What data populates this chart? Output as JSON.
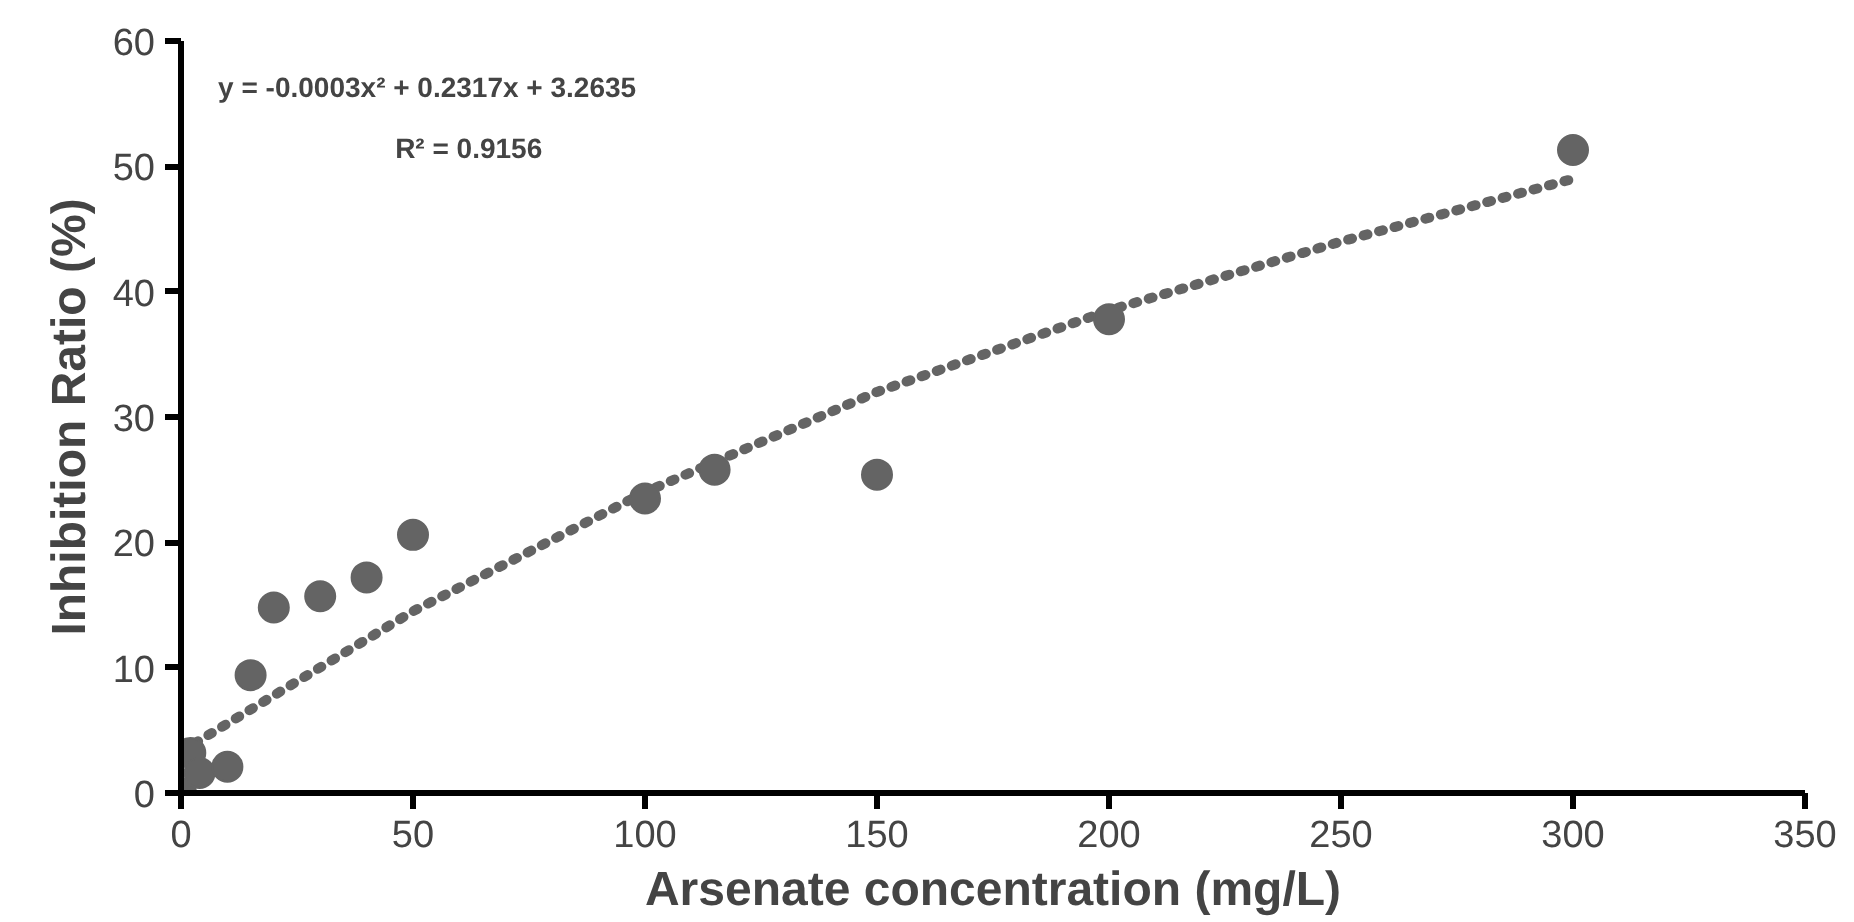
{
  "chart_data": {
    "type": "scatter",
    "xlabel": "Arsenate concentration (mg/L)",
    "ylabel": "Inhibition Ratio (%)",
    "annotations": [
      "y = -0.0003x² + 0.2317x + 3.2635",
      "R² = 0.9156"
    ],
    "xlim": [
      0,
      350
    ],
    "xticks": [
      0,
      50,
      100,
      150,
      200,
      250,
      300,
      350
    ],
    "ylim": [
      0,
      60
    ],
    "yticks": [
      0,
      10,
      20,
      30,
      40,
      50,
      60
    ],
    "grid": false,
    "series": [
      {
        "marker": "circle",
        "color": "#646464",
        "x": [
          0,
          2,
          4,
          10,
          15,
          20,
          30,
          40,
          50,
          100,
          115,
          150,
          200,
          300
        ],
        "values": [
          0,
          3.2,
          1.6,
          2.1,
          9.4,
          14.8,
          15.7,
          17.2,
          20.6,
          23.5,
          25.8,
          25.4,
          37.8,
          51.3
        ]
      },
      {
        "type": "line",
        "line_style": "dotted",
        "color": "#646464",
        "x": [
          0,
          50,
          100,
          150,
          200,
          250,
          300
        ],
        "values": [
          3.3,
          14.5,
          24,
          32,
          38.5,
          44,
          49
        ]
      }
    ]
  }
}
